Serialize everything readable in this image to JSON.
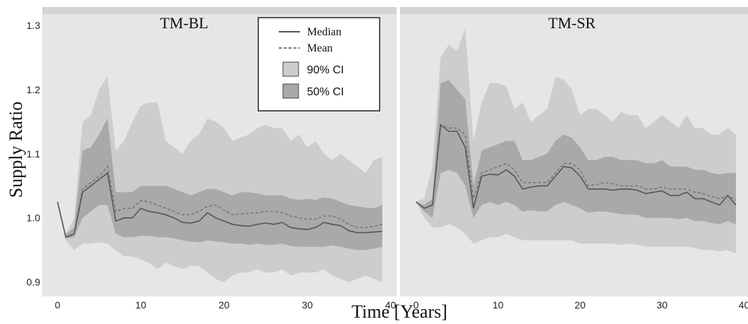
{
  "chart_data": {
    "type": "line",
    "ylabel": "Supply Ratio",
    "xlabel": "Time [Years]",
    "xlim": [
      -3,
      40
    ],
    "ylim": [
      0.886,
      1.325
    ],
    "x_ticks": [
      0,
      10,
      20,
      30,
      40
    ],
    "y_ticks": [
      0.9,
      1.0,
      1.1,
      1.2,
      1.3
    ],
    "legend": {
      "position": "top-center",
      "median_label": "Median",
      "mean_label": "Mean",
      "ci90_label": "90% CI",
      "ci50_label": "50% CI"
    },
    "colors": {
      "page_background": "#ffffff",
      "panel_background": "#e6e6e6",
      "strip_background": "#d4d4d4",
      "ci90_fill": "#cdcdcd",
      "ci50_fill": "#a9a9a9",
      "median_line": "#555555",
      "mean_line": "#777777"
    },
    "panels": [
      {
        "title": "TM-BL",
        "x": [
          0,
          1,
          2,
          3,
          4,
          5,
          6,
          7,
          8,
          9,
          10,
          11,
          12,
          13,
          14,
          15,
          16,
          17,
          18,
          19,
          20,
          21,
          22,
          23,
          24,
          25,
          26,
          27,
          28,
          29,
          30,
          31,
          32,
          33,
          34,
          35,
          36,
          37,
          38,
          39
        ],
        "median": [
          1.025,
          0.97,
          0.975,
          1.04,
          1.05,
          1.06,
          1.07,
          0.995,
          1.0,
          1.0,
          1.015,
          1.01,
          1.008,
          1.005,
          1.0,
          0.993,
          0.992,
          0.995,
          1.008,
          1.0,
          0.995,
          0.99,
          0.988,
          0.987,
          0.99,
          0.992,
          0.99,
          0.993,
          0.985,
          0.983,
          0.982,
          0.985,
          0.993,
          0.99,
          0.988,
          0.98,
          0.977,
          0.977,
          0.978,
          0.979
        ],
        "mean": [
          1.025,
          0.97,
          0.975,
          1.045,
          1.055,
          1.065,
          1.08,
          1.01,
          1.015,
          1.015,
          1.027,
          1.025,
          1.02,
          1.015,
          1.01,
          1.005,
          1.005,
          1.01,
          1.018,
          1.02,
          1.012,
          1.005,
          1.006,
          1.007,
          1.008,
          1.01,
          1.01,
          1.008,
          1.003,
          1.0,
          0.998,
          0.998,
          1.003,
          1.003,
          0.998,
          0.99,
          0.985,
          0.985,
          0.987,
          0.99
        ],
        "ci50_low": [
          1.025,
          0.968,
          0.97,
          1.0,
          1.01,
          1.02,
          1.02,
          0.975,
          0.97,
          0.97,
          0.972,
          0.972,
          0.97,
          0.97,
          0.968,
          0.965,
          0.963,
          0.962,
          0.965,
          0.963,
          0.962,
          0.96,
          0.96,
          0.958,
          0.96,
          0.958,
          0.958,
          0.96,
          0.956,
          0.955,
          0.955,
          0.955,
          0.955,
          0.957,
          0.955,
          0.952,
          0.95,
          0.95,
          0.952,
          0.955
        ],
        "ci50_high": [
          1.025,
          0.975,
          0.985,
          1.105,
          1.11,
          1.13,
          1.155,
          1.04,
          1.04,
          1.04,
          1.05,
          1.05,
          1.05,
          1.05,
          1.045,
          1.04,
          1.035,
          1.04,
          1.045,
          1.045,
          1.04,
          1.035,
          1.04,
          1.04,
          1.038,
          1.035,
          1.035,
          1.035,
          1.03,
          1.028,
          1.03,
          1.028,
          1.032,
          1.03,
          1.025,
          1.02,
          1.018,
          1.016,
          1.015,
          1.02
        ],
        "ci90_low": [
          1.025,
          0.965,
          0.95,
          0.96,
          0.96,
          0.962,
          0.96,
          0.95,
          0.94,
          0.94,
          0.935,
          0.93,
          0.92,
          0.93,
          0.925,
          0.92,
          0.925,
          0.925,
          0.915,
          0.905,
          0.9,
          0.91,
          0.915,
          0.915,
          0.92,
          0.915,
          0.915,
          0.92,
          0.91,
          0.915,
          0.915,
          0.915,
          0.92,
          0.91,
          0.905,
          0.9,
          0.905,
          0.91,
          0.905,
          0.9
        ],
        "ci90_high": [
          1.025,
          0.975,
          1.0,
          1.15,
          1.16,
          1.2,
          1.22,
          1.105,
          1.12,
          1.15,
          1.175,
          1.18,
          1.18,
          1.12,
          1.11,
          1.1,
          1.12,
          1.13,
          1.155,
          1.15,
          1.14,
          1.12,
          1.125,
          1.13,
          1.14,
          1.145,
          1.14,
          1.14,
          1.12,
          1.13,
          1.11,
          1.12,
          1.1,
          1.09,
          1.1,
          1.09,
          1.08,
          1.07,
          1.09,
          1.095
        ]
      },
      {
        "title": "TM-SR",
        "x": [
          0,
          1,
          2,
          3,
          4,
          5,
          6,
          7,
          8,
          9,
          10,
          11,
          12,
          13,
          14,
          15,
          16,
          17,
          18,
          19,
          20,
          21,
          22,
          23,
          24,
          25,
          26,
          27,
          28,
          29,
          30,
          31,
          32,
          33,
          34,
          35,
          36,
          37,
          38,
          39
        ],
        "median": [
          1.025,
          1.015,
          1.02,
          1.145,
          1.135,
          1.135,
          1.11,
          1.015,
          1.065,
          1.068,
          1.067,
          1.075,
          1.065,
          1.045,
          1.048,
          1.05,
          1.05,
          1.065,
          1.08,
          1.078,
          1.065,
          1.045,
          1.045,
          1.045,
          1.043,
          1.045,
          1.045,
          1.043,
          1.038,
          1.04,
          1.042,
          1.035,
          1.035,
          1.04,
          1.03,
          1.03,
          1.025,
          1.02,
          1.035,
          1.02
        ],
        "mean": [
          1.025,
          1.015,
          1.02,
          1.145,
          1.14,
          1.14,
          1.13,
          1.03,
          1.07,
          1.075,
          1.08,
          1.085,
          1.075,
          1.055,
          1.055,
          1.055,
          1.055,
          1.07,
          1.085,
          1.085,
          1.075,
          1.05,
          1.052,
          1.055,
          1.053,
          1.05,
          1.05,
          1.05,
          1.045,
          1.045,
          1.048,
          1.045,
          1.045,
          1.045,
          1.04,
          1.038,
          1.033,
          1.03,
          1.034,
          1.028
        ],
        "ci50_low": [
          1.025,
          1.01,
          1.0,
          1.07,
          1.075,
          1.07,
          1.05,
          1.0,
          1.02,
          1.025,
          1.02,
          1.025,
          1.02,
          1.01,
          1.012,
          1.01,
          1.01,
          1.02,
          1.025,
          1.02,
          1.015,
          1.008,
          1.01,
          1.01,
          1.008,
          1.006,
          1.005,
          1.005,
          1.0,
          1.0,
          1.0,
          1.0,
          0.998,
          1.0,
          0.995,
          0.995,
          0.992,
          0.99,
          0.995,
          0.99
        ],
        "ci50_high": [
          1.025,
          1.02,
          1.03,
          1.21,
          1.215,
          1.2,
          1.185,
          1.05,
          1.105,
          1.11,
          1.115,
          1.12,
          1.12,
          1.09,
          1.09,
          1.095,
          1.1,
          1.12,
          1.13,
          1.125,
          1.11,
          1.09,
          1.09,
          1.095,
          1.095,
          1.09,
          1.09,
          1.09,
          1.085,
          1.085,
          1.09,
          1.08,
          1.08,
          1.08,
          1.075,
          1.075,
          1.07,
          1.068,
          1.07,
          1.07
        ],
        "ci90_low": [
          1.025,
          1.0,
          0.985,
          0.985,
          0.99,
          0.985,
          0.975,
          0.96,
          0.965,
          0.97,
          0.97,
          0.975,
          0.97,
          0.965,
          0.965,
          0.965,
          0.965,
          0.965,
          0.965,
          0.965,
          0.96,
          0.96,
          0.96,
          0.96,
          0.96,
          0.958,
          0.96,
          0.958,
          0.955,
          0.955,
          0.955,
          0.955,
          0.955,
          0.955,
          0.953,
          0.95,
          0.95,
          0.948,
          0.95,
          0.945
        ],
        "ci90_high": [
          1.025,
          1.03,
          1.08,
          1.25,
          1.27,
          1.26,
          1.295,
          1.12,
          1.18,
          1.21,
          1.21,
          1.205,
          1.17,
          1.18,
          1.15,
          1.16,
          1.17,
          1.22,
          1.215,
          1.2,
          1.16,
          1.17,
          1.17,
          1.16,
          1.15,
          1.165,
          1.16,
          1.16,
          1.14,
          1.15,
          1.16,
          1.15,
          1.14,
          1.16,
          1.14,
          1.14,
          1.13,
          1.13,
          1.14,
          1.13
        ]
      }
    ]
  }
}
